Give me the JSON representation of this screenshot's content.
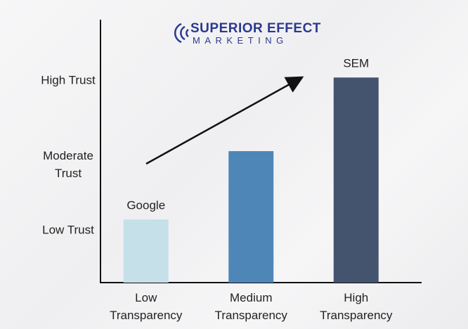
{
  "logo": {
    "title": "SUPERIOR EFFECT",
    "subtitle": "MARKETING"
  },
  "chart_data": {
    "type": "bar",
    "categories": [
      "Low Transparency",
      "Medium Transparency",
      "High Transparency"
    ],
    "values": [
      24,
      50,
      78
    ],
    "bar_labels": [
      "Google",
      null,
      "SEM"
    ],
    "colors": [
      "#c5e0e8",
      "#4f86b8",
      "#44546e"
    ],
    "ylim": [
      0,
      100
    ],
    "yticks": [
      {
        "value": 20,
        "label": "Low Trust"
      },
      {
        "value": 45,
        "label": "Moderate Trust"
      },
      {
        "value": 77,
        "label": "High Trust"
      }
    ]
  }
}
